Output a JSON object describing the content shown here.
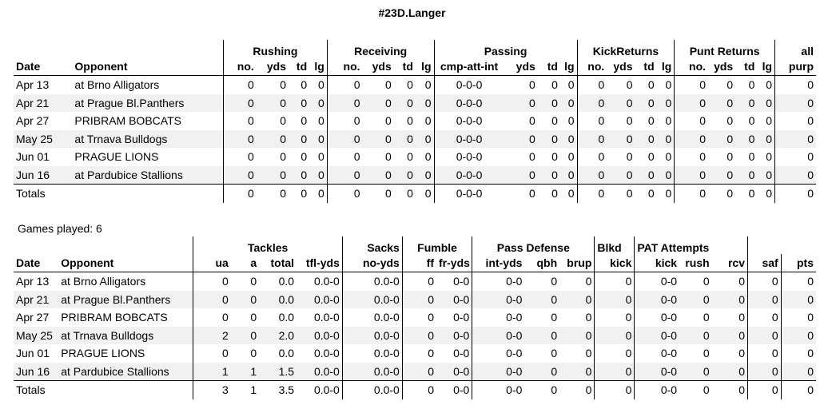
{
  "page": {
    "title": "#23D.Langer",
    "games_played": "Games played: 6"
  },
  "offense": {
    "groups": [
      "Rushing",
      "Receiving",
      "Passing",
      "KickReturns",
      "Punt Returns",
      "all"
    ],
    "columns": [
      "Date",
      "Opponent",
      "no.",
      "yds",
      "td",
      "lg",
      "no.",
      "yds",
      "td",
      "lg",
      "cmp-att-int",
      "yds",
      "td",
      "lg",
      "no.",
      "yds",
      "td",
      "lg",
      "no.",
      "yds",
      "td",
      "lg",
      "purp"
    ],
    "rows": [
      [
        "Apr 13",
        "at Brno Alligators",
        "0",
        "0",
        "0",
        "0",
        "0",
        "0",
        "0",
        "0",
        "0-0-0",
        "0",
        "0",
        "0",
        "0",
        "0",
        "0",
        "0",
        "0",
        "0",
        "0",
        "0",
        "0"
      ],
      [
        "Apr 21",
        "at Prague Bl.Panthers",
        "0",
        "0",
        "0",
        "0",
        "0",
        "0",
        "0",
        "0",
        "0-0-0",
        "0",
        "0",
        "0",
        "0",
        "0",
        "0",
        "0",
        "0",
        "0",
        "0",
        "0",
        "0"
      ],
      [
        "Apr 27",
        "PRIBRAM BOBCATS",
        "0",
        "0",
        "0",
        "0",
        "0",
        "0",
        "0",
        "0",
        "0-0-0",
        "0",
        "0",
        "0",
        "0",
        "0",
        "0",
        "0",
        "0",
        "0",
        "0",
        "0",
        "0"
      ],
      [
        "May 25",
        "at Trnava Bulldogs",
        "0",
        "0",
        "0",
        "0",
        "0",
        "0",
        "0",
        "0",
        "0-0-0",
        "0",
        "0",
        "0",
        "0",
        "0",
        "0",
        "0",
        "0",
        "0",
        "0",
        "0",
        "0"
      ],
      [
        "Jun 01",
        "PRAGUE LIONS",
        "0",
        "0",
        "0",
        "0",
        "0",
        "0",
        "0",
        "0",
        "0-0-0",
        "0",
        "0",
        "0",
        "0",
        "0",
        "0",
        "0",
        "0",
        "0",
        "0",
        "0",
        "0"
      ],
      [
        "Jun 16",
        "at Pardubice Stallions",
        "0",
        "0",
        "0",
        "0",
        "0",
        "0",
        "0",
        "0",
        "0-0-0",
        "0",
        "0",
        "0",
        "0",
        "0",
        "0",
        "0",
        "0",
        "0",
        "0",
        "0",
        "0"
      ]
    ],
    "totals": [
      "Totals",
      "",
      "0",
      "0",
      "0",
      "0",
      "0",
      "0",
      "0",
      "0",
      "0-0-0",
      "0",
      "0",
      "0",
      "0",
      "0",
      "0",
      "0",
      "0",
      "0",
      "0",
      "0",
      "0"
    ]
  },
  "defense": {
    "groups": [
      "Tackles",
      "Sacks",
      "Fumble",
      "Pass Defense",
      "Blkd",
      "PAT Attempts"
    ],
    "columns": [
      "Date",
      "Opponent",
      "ua",
      "a",
      "total",
      "tfl-yds",
      "no-yds",
      "ff",
      "fr-yds",
      "int-yds",
      "qbh",
      "brup",
      "kick",
      "kick",
      "rush",
      "rcv",
      "saf",
      "pts"
    ],
    "rows": [
      [
        "Apr 13",
        "at Brno Alligators",
        "0",
        "0",
        "0.0",
        "0.0-0",
        "0.0-0",
        "0",
        "0-0",
        "0-0",
        "0",
        "0",
        "0",
        "0-0",
        "0",
        "0",
        "0",
        "0"
      ],
      [
        "Apr 21",
        "at Prague Bl.Panthers",
        "0",
        "0",
        "0.0",
        "0.0-0",
        "0.0-0",
        "0",
        "0-0",
        "0-0",
        "0",
        "0",
        "0",
        "0-0",
        "0",
        "0",
        "0",
        "0"
      ],
      [
        "Apr 27",
        "PRIBRAM BOBCATS",
        "0",
        "0",
        "0.0",
        "0.0-0",
        "0.0-0",
        "0",
        "0-0",
        "0-0",
        "0",
        "0",
        "0",
        "0-0",
        "0",
        "0",
        "0",
        "0"
      ],
      [
        "May 25",
        "at Trnava Bulldogs",
        "2",
        "0",
        "2.0",
        "0.0-0",
        "0.0-0",
        "0",
        "0-0",
        "0-0",
        "0",
        "0",
        "0",
        "0-0",
        "0",
        "0",
        "0",
        "0"
      ],
      [
        "Jun 01",
        "PRAGUE LIONS",
        "0",
        "0",
        "0.0",
        "0.0-0",
        "0.0-0",
        "0",
        "0-0",
        "0-0",
        "0",
        "0",
        "0",
        "0-0",
        "0",
        "0",
        "0",
        "0"
      ],
      [
        "Jun 16",
        "at Pardubice Stallions",
        "1",
        "1",
        "1.5",
        "0.0-0",
        "0.0-0",
        "0",
        "0-0",
        "0-0",
        "0",
        "0",
        "0",
        "0-0",
        "0",
        "0",
        "0",
        "0"
      ]
    ],
    "totals": [
      "Totals",
      "",
      "3",
      "1",
      "3.5",
      "0.0-0",
      "0.0-0",
      "0",
      "0-0",
      "0-0",
      "0",
      "0",
      "0",
      "0-0",
      "0",
      "0",
      "0",
      "0"
    ]
  }
}
